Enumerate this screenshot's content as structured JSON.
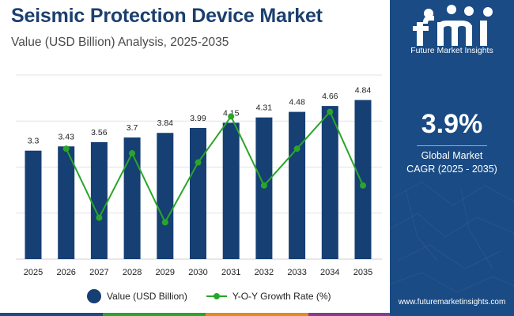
{
  "header": {
    "title": "Seismic Protection Device Market",
    "subtitle": "Value (USD Billion) Analysis, 2025-2035"
  },
  "chart_data": {
    "type": "bar+line",
    "title": "Seismic Protection Device Market",
    "subtitle": "Value (USD Billion) Analysis, 2025-2035",
    "categories": [
      "2025",
      "2026",
      "2027",
      "2028",
      "2029",
      "2030",
      "2031",
      "2032",
      "2033",
      "2034",
      "2035"
    ],
    "series": [
      {
        "name": "Value (USD Billion)",
        "type": "bar",
        "color": "#163f73",
        "values": [
          3.3,
          3.43,
          3.56,
          3.7,
          3.84,
          3.99,
          4.15,
          4.31,
          4.48,
          4.66,
          4.84
        ],
        "labels": [
          "3.3",
          "3.43",
          "3.56",
          "3.7",
          "3.84",
          "3.99",
          "4.15",
          "4.31",
          "4.48",
          "4.66",
          "4.84"
        ]
      },
      {
        "name": "Y-O-Y Growth Rate (%)",
        "type": "line",
        "color": "#2aa52a",
        "values": [
          null,
          3.94,
          3.79,
          3.93,
          3.78,
          3.91,
          4.01,
          3.86,
          3.94,
          4.02,
          3.86
        ]
      }
    ],
    "bar_ylim": [
      0,
      5.6
    ],
    "line_ylim": [
      3.7,
      4.1
    ],
    "grid": true,
    "legend_position": "bottom"
  },
  "side_panel": {
    "logo_text": "fmi",
    "logo_caption": "Future Market Insights",
    "cagr_value": "3.9%",
    "cagr_label_line1": "Global Market",
    "cagr_label_line2": "CAGR (2025 - 2035)",
    "website": "www.futuremarketinsights.com"
  },
  "colors": {
    "title": "#1b3f6f",
    "panel": "#1a4b84",
    "bar": "#163f73",
    "line": "#2aa52a",
    "bottom_strip": [
      "#1a4b84",
      "#2aa52a",
      "#e88a1a",
      "#8a3a8e",
      "#1a4b84"
    ]
  }
}
